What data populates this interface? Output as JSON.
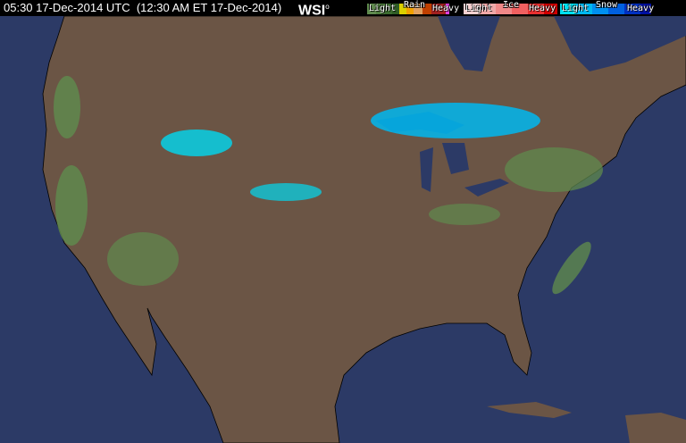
{
  "header": {
    "timestamp": "05:30 17-Dec-2014 UTC  (12:30 AM ET 17-Dec-2014)",
    "logo": "WSI"
  },
  "legend": {
    "rain": {
      "title": "Rain",
      "light": "Light",
      "heavy": "Heavy",
      "colors": [
        "#5f8a4e",
        "#4f7d3f",
        "#3b6a2f",
        "#2f5d25",
        "#dcd000",
        "#f0a000",
        "#e0a060",
        "#c04000",
        "#a02020",
        "#e040e0"
      ]
    },
    "ice": {
      "title": "Ice",
      "light": "Light",
      "heavy": "Heavy",
      "colors": [
        "#f8d0d0",
        "#f0a8a8",
        "#f08888",
        "#f06060",
        "#e83030",
        "#d00000"
      ]
    },
    "snow": {
      "title": "Snow",
      "light": "Light",
      "heavy": "Heavy",
      "colors": [
        "#00e0f0",
        "#00b8f0",
        "#0090f0",
        "#0060e0",
        "#0030c0",
        "#0010a0"
      ]
    }
  },
  "map_colors": {
    "ocean": "#2c3a66",
    "land": "#6b5545",
    "border": "#000000"
  }
}
